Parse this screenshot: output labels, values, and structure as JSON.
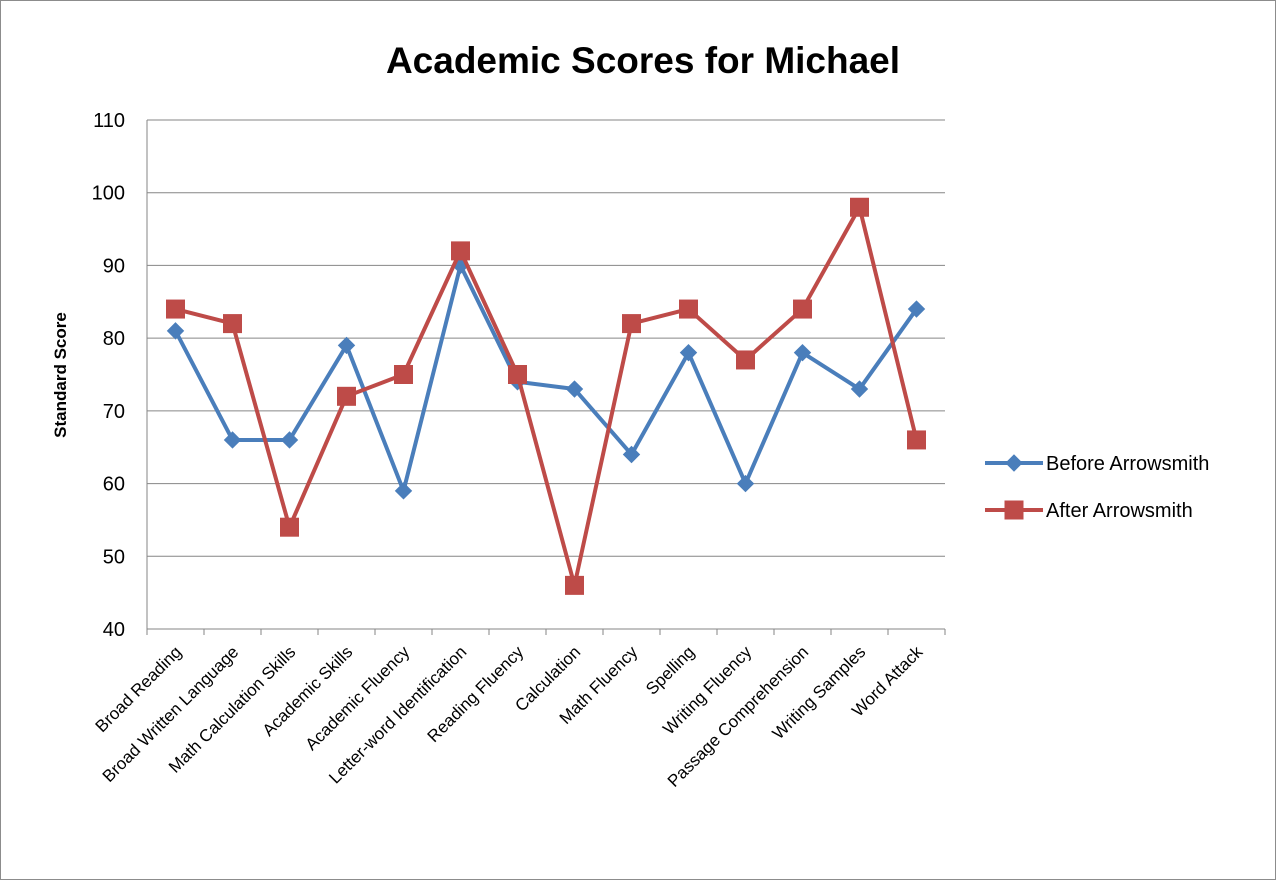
{
  "chart_data": {
    "type": "line",
    "title": "Academic Scores for Michael",
    "xlabel": "",
    "ylabel": "Standard Score",
    "ylim": [
      40,
      110
    ],
    "yticks": [
      40,
      50,
      60,
      70,
      80,
      90,
      100,
      110
    ],
    "grid": true,
    "legend_position": "right",
    "categories": [
      "Broad Reading",
      "Broad Written Language",
      "Math Calculation Skills",
      "Academic Skills",
      "Academic Fluency",
      "Letter-word Identification",
      "Reading Fluency",
      "Calculation",
      "Math Fluency",
      "Spelling",
      "Writing Fluency",
      "Passage Comprehension",
      "Writing Samples",
      "Word Attack"
    ],
    "series": [
      {
        "name": "Before Arrowsmith",
        "color": "#4a7ebb",
        "marker": "diamond",
        "values": [
          81,
          66,
          66,
          79,
          59,
          90,
          74,
          73,
          64,
          78,
          60,
          78,
          73,
          84
        ]
      },
      {
        "name": "After Arrowsmith",
        "color": "#be4b48",
        "marker": "square",
        "values": [
          84,
          82,
          54,
          72,
          75,
          92,
          75,
          46,
          82,
          84,
          77,
          84,
          98,
          66
        ]
      }
    ]
  }
}
